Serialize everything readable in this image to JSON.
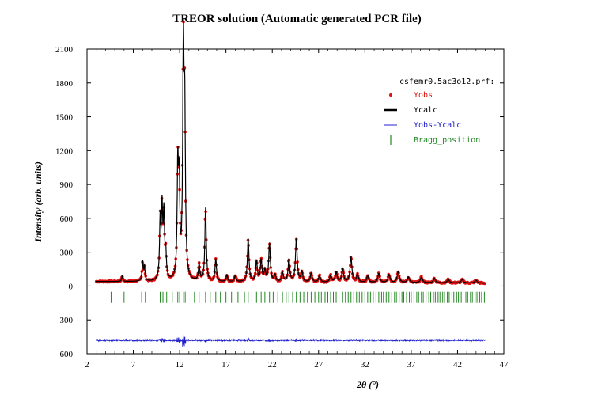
{
  "chart_data": {
    "type": "line",
    "title": "TREOR solution (Automatic generated PCR file)",
    "xlabel": "2θ (°)",
    "ylabel": "Intensity (arb. units)",
    "xlim": [
      2,
      47
    ],
    "ylim": [
      -600,
      2100
    ],
    "xticks": [
      2,
      7,
      12,
      17,
      22,
      27,
      32,
      37,
      42,
      47
    ],
    "yticks": [
      -600,
      -300,
      0,
      300,
      600,
      900,
      1200,
      1500,
      1800,
      2100
    ],
    "file_label": "csfemr0.5ac3o12.prf:",
    "legend": [
      {
        "label": "Yobs",
        "color": "#dd1111",
        "marker": "dot"
      },
      {
        "label": "Ycalc",
        "color": "#000000",
        "marker": "line"
      },
      {
        "label": "Yobs-Ycalc",
        "color": "#2222cc",
        "marker": "thinline"
      },
      {
        "label": "Bragg_position",
        "color": "#228822",
        "marker": "tick"
      }
    ],
    "background_level": 40,
    "x_range": [
      3,
      45
    ],
    "peaks": [
      [
        5.8,
        50
      ],
      [
        8.0,
        170
      ],
      [
        8.2,
        120
      ],
      [
        9.9,
        520
      ],
      [
        10.1,
        600
      ],
      [
        10.3,
        560
      ],
      [
        10.5,
        220
      ],
      [
        11.8,
        960
      ],
      [
        11.95,
        760
      ],
      [
        12.4,
        1960
      ],
      [
        12.55,
        1350
      ],
      [
        14.1,
        150
      ],
      [
        14.8,
        650
      ],
      [
        15.9,
        200
      ],
      [
        17.1,
        60
      ],
      [
        18.0,
        55
      ],
      [
        19.4,
        380
      ],
      [
        20.3,
        180
      ],
      [
        20.8,
        190
      ],
      [
        21.2,
        100
      ],
      [
        21.7,
        340
      ],
      [
        22.3,
        60
      ],
      [
        23.1,
        80
      ],
      [
        23.8,
        200
      ],
      [
        24.6,
        380
      ],
      [
        25.2,
        90
      ],
      [
        26.2,
        80
      ],
      [
        27.1,
        60
      ],
      [
        28.3,
        60
      ],
      [
        28.9,
        90
      ],
      [
        29.6,
        120
      ],
      [
        30.5,
        220
      ],
      [
        31.2,
        70
      ],
      [
        32.3,
        60
      ],
      [
        33.5,
        80
      ],
      [
        34.6,
        70
      ],
      [
        35.6,
        100
      ],
      [
        36.7,
        50
      ],
      [
        38.1,
        50
      ],
      [
        39.5,
        40
      ],
      [
        41.0,
        30
      ],
      [
        42.5,
        30
      ],
      [
        44.0,
        25
      ]
    ],
    "bragg_positions": [
      4.6,
      6.0,
      7.9,
      8.3,
      9.9,
      10.2,
      10.6,
      11.2,
      11.8,
      12.0,
      12.4,
      12.6,
      13.6,
      14.1,
      14.8,
      15.3,
      15.9,
      16.4,
      17.0,
      17.6,
      18.3,
      19.0,
      19.4,
      19.8,
      20.3,
      20.8,
      21.2,
      21.7,
      22.1,
      22.6,
      23.1,
      23.5,
      23.8,
      24.2,
      24.6,
      25.0,
      25.4,
      25.8,
      26.2,
      26.6,
      27.0,
      27.3,
      27.7,
      28.0,
      28.3,
      28.6,
      28.9,
      29.2,
      29.6,
      29.9,
      30.2,
      30.5,
      30.8,
      31.1,
      31.4,
      31.7,
      32.0,
      32.3,
      32.6,
      32.9,
      33.2,
      33.5,
      33.8,
      34.0,
      34.3,
      34.6,
      34.9,
      35.2,
      35.4,
      35.7,
      36.0,
      36.2,
      36.5,
      36.8,
      37.0,
      37.3,
      37.6,
      37.8,
      38.1,
      38.3,
      38.6,
      38.9,
      39.1,
      39.4,
      39.6,
      39.9,
      40.1,
      40.4,
      40.6,
      40.9,
      41.1,
      41.4,
      41.6,
      41.9,
      42.1,
      42.4,
      42.6,
      42.9,
      43.1,
      43.4,
      43.6,
      43.9,
      44.1,
      44.4,
      44.6,
      44.9
    ],
    "bragg_level": -100,
    "difference_level": -480
  }
}
